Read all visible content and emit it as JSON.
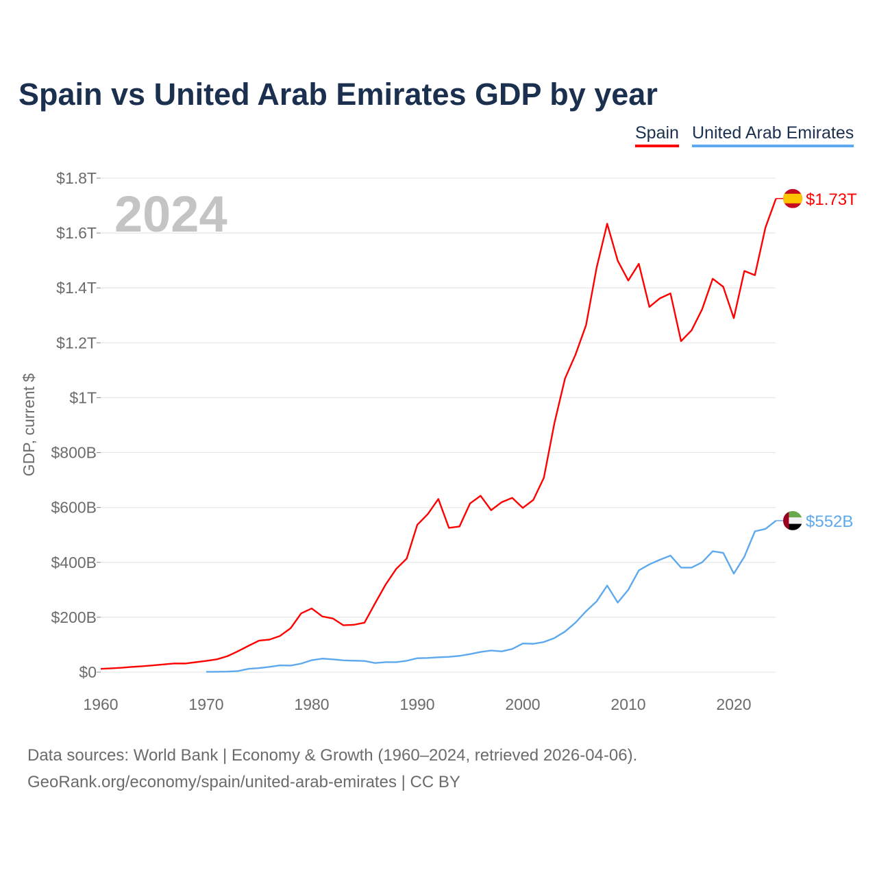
{
  "chart_data": {
    "type": "line",
    "title": "Spain vs United Arab Emirates GDP by year",
    "ylabel": "GDP, current $",
    "xlabel": "",
    "year_label": "2024",
    "xlim": [
      1960,
      2024
    ],
    "ylim": [
      0,
      1800000000000
    ],
    "grid": true,
    "legend_position": "top-right",
    "x_ticks": [
      1960,
      1970,
      1980,
      1990,
      2000,
      2010,
      2020
    ],
    "x_tick_labels": [
      "1960",
      "1970",
      "1980",
      "1990",
      "2000",
      "2010",
      "2020"
    ],
    "y_ticks": [
      0,
      200000000000,
      400000000000,
      600000000000,
      800000000000,
      1000000000000,
      1200000000000,
      1400000000000,
      1600000000000,
      1800000000000
    ],
    "y_tick_labels": [
      "$0",
      "$200B",
      "$400B",
      "$600B",
      "$800B",
      "$1T",
      "$1.2T",
      "$1.4T",
      "$1.6T",
      "$1.8T"
    ],
    "series": [
      {
        "name": "Spain",
        "color": "#ff0000",
        "end_label": "$1.73T",
        "flag": "spain-flag-icon",
        "start_year": 1960,
        "values_billion": [
          12.1,
          13.8,
          16.1,
          19.3,
          21.6,
          24.8,
          28.3,
          31.6,
          31.5,
          36.2,
          41.0,
          46.6,
          58.0,
          76.0,
          95.8,
          114.8,
          118.6,
          132.1,
          160.1,
          214.3,
          232.0,
          202.9,
          195.6,
          170.8,
          172.6,
          180.3,
          250.6,
          318.9,
          375.9,
          413.8,
          536.6,
          576.0,
          630.9,
          525.8,
          530.6,
          614.6,
          642.6,
          590.1,
          619.2,
          635.0,
          598.4,
          627.6,
          708.5,
          907.5,
          1069.6,
          1157.3,
          1264.6,
          1474.0,
          1634.0,
          1499.1,
          1427.0,
          1487.8,
          1330.8,
          1362.2,
          1380.0,
          1206.2,
          1245.6,
          1322.4,
          1433.4,
          1404.0,
          1289.8,
          1461.6,
          1446.5,
          1620.1,
          1725.7
        ]
      },
      {
        "name": "United Arab Emirates",
        "color": "#5ea8ee",
        "end_label": "$552B",
        "flag": "uae-flag-icon",
        "start_year": 1970,
        "values_billion": [
          1.0,
          1.3,
          2.0,
          4.0,
          12.0,
          14.7,
          19.2,
          24.9,
          23.8,
          31.2,
          43.6,
          49.3,
          46.6,
          42.8,
          41.8,
          40.6,
          33.3,
          36.3,
          36.3,
          41.5,
          50.7,
          51.6,
          54.2,
          55.6,
          59.3,
          65.7,
          73.6,
          78.8,
          75.7,
          84.4,
          104.3,
          103.3,
          109.8,
          124.3,
          147.8,
          180.6,
          222.1,
          257.9,
          315.5,
          253.5,
          300.2,
          370.7,
          392.7,
          409.4,
          424.6,
          381.0,
          381.0,
          400.2,
          440.6,
          434.6,
          358.9,
          420.5,
          513.0,
          522.0,
          552.0
        ]
      }
    ]
  },
  "footer": {
    "line1": "Data sources: World Bank | Economy & Growth (1960–2024, retrieved 2026-04-06).",
    "line2": "GeoRank.org/economy/spain/united-arab-emirates | CC BY"
  }
}
